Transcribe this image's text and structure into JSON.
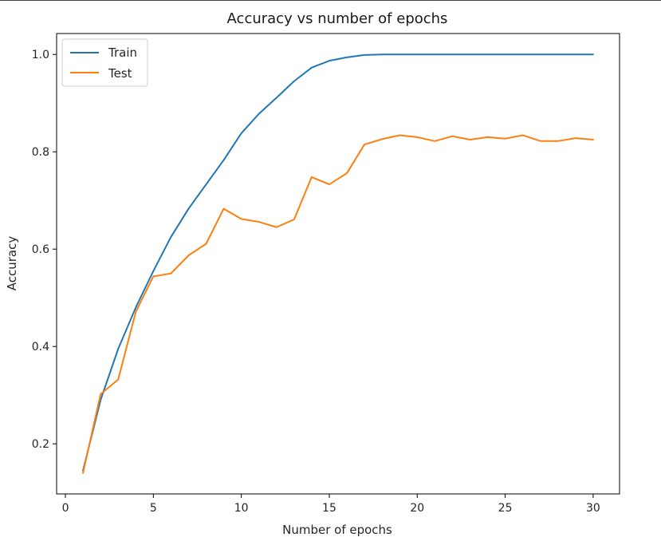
{
  "chart_data": {
    "type": "line",
    "title": "Accuracy vs number of epochs",
    "xlabel": "Number of epochs",
    "ylabel": "Accuracy",
    "xlim": [
      -0.5,
      31.5
    ],
    "ylim": [
      0.097,
      1.043
    ],
    "x_ticks": [
      0,
      5,
      10,
      15,
      20,
      25,
      30
    ],
    "y_ticks": [
      0.2,
      0.4,
      0.6,
      0.8,
      1.0
    ],
    "x_tick_labels": [
      "0",
      "5",
      "10",
      "15",
      "20",
      "25",
      "30"
    ],
    "y_tick_labels": [
      "0.2",
      "0.4",
      "0.6",
      "0.8",
      "1.0"
    ],
    "grid": false,
    "legend_position": "top-left",
    "x": [
      1,
      2,
      3,
      4,
      5,
      6,
      7,
      8,
      9,
      10,
      11,
      12,
      13,
      14,
      15,
      16,
      17,
      18,
      19,
      20,
      21,
      22,
      23,
      24,
      25,
      26,
      27,
      28,
      29,
      30
    ],
    "series": [
      {
        "name": "Train",
        "color": "#1f77b4",
        "values": [
          0.145,
          0.29,
          0.395,
          0.48,
          0.555,
          0.625,
          0.683,
          0.733,
          0.783,
          0.838,
          0.878,
          0.911,
          0.945,
          0.973,
          0.987,
          0.994,
          0.999,
          1.0,
          1.0,
          1.0,
          1.0,
          1.0,
          1.0,
          1.0,
          1.0,
          1.0,
          1.0,
          1.0,
          1.0,
          1.0
        ]
      },
      {
        "name": "Test",
        "color": "#ff7f0e",
        "values": [
          0.14,
          0.302,
          0.332,
          0.471,
          0.544,
          0.55,
          0.587,
          0.611,
          0.683,
          0.662,
          0.656,
          0.645,
          0.661,
          0.748,
          0.733,
          0.756,
          0.815,
          0.826,
          0.834,
          0.83,
          0.822,
          0.832,
          0.825,
          0.83,
          0.827,
          0.834,
          0.822,
          0.822,
          0.828,
          0.825
        ]
      }
    ]
  }
}
